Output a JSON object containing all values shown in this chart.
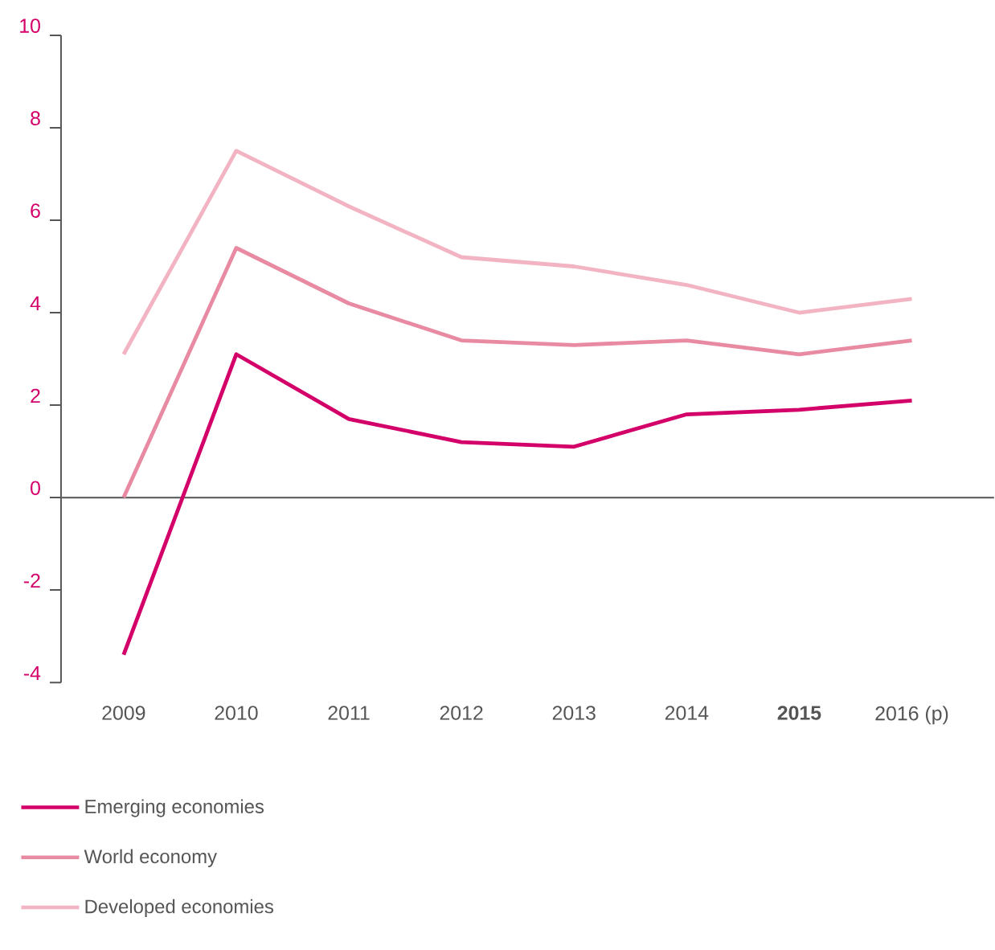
{
  "chart_data": {
    "type": "line",
    "categories": [
      "2009",
      "2010",
      "2011",
      "2012",
      "2013",
      "2014",
      "**2015**",
      "2016 (p)"
    ],
    "series": [
      {
        "name": "Emerging economies",
        "color": "#d4006a",
        "values": [
          -3.4,
          3.1,
          1.7,
          1.2,
          1.1,
          1.8,
          1.9,
          2.1
        ]
      },
      {
        "name": "World economy",
        "color": "#e88aa2",
        "values": [
          0,
          5.4,
          4.2,
          3.4,
          3.3,
          3.4,
          3.1,
          3.4
        ]
      },
      {
        "name": "Developed economies",
        "color": "#f2b4c2",
        "values": [
          3.1,
          7.5,
          6.3,
          5.2,
          5.0,
          4.6,
          4.0,
          4.3
        ]
      }
    ],
    "ylim": [
      -4,
      10
    ],
    "yticks": [
      -4,
      -2,
      0,
      2,
      4,
      6,
      8,
      10
    ],
    "ref_lines": [
      {
        "axis": "y",
        "value": 0,
        "color": "#666666"
      }
    ],
    "legend": "bottom",
    "grid": false,
    "marker": "none",
    "line_style": "solid"
  }
}
